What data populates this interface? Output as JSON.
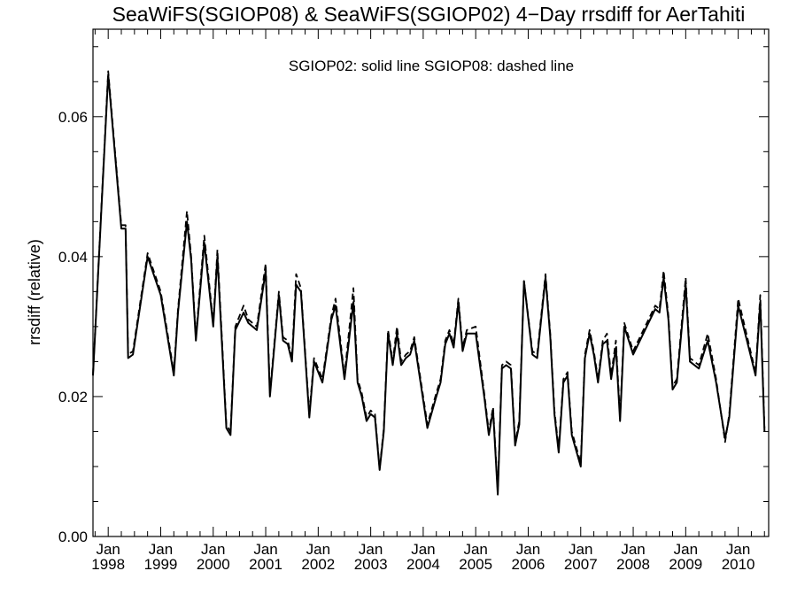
{
  "chart_data": {
    "type": "line",
    "title": "SeaWiFS(SGIOP08) & SeaWiFS(SGIOP02) 4−Day rrsdiff for AerTahiti",
    "annotation": "SGIOP02: solid line   SGIOP08: dashed line",
    "ylabel": "rrsdiff (relative)",
    "xlabel": "",
    "xlim": [
      1997.71,
      2010.58
    ],
    "ylim": [
      0.0,
      0.0725
    ],
    "yticks": [
      0.0,
      0.02,
      0.04,
      0.06
    ],
    "ytick_labels": [
      "0.00",
      "0.02",
      "0.04",
      "0.06"
    ],
    "x_tick_labels": [
      {
        "x": 1998.0,
        "month": "Jan",
        "year": "1998"
      },
      {
        "x": 1999.0,
        "month": "Jan",
        "year": "1999"
      },
      {
        "x": 2000.0,
        "month": "Jan",
        "year": "2000"
      },
      {
        "x": 2001.0,
        "month": "Jan",
        "year": "2001"
      },
      {
        "x": 2002.0,
        "month": "Jan",
        "year": "2002"
      },
      {
        "x": 2003.0,
        "month": "Jan",
        "year": "2003"
      },
      {
        "x": 2004.0,
        "month": "Jan",
        "year": "2004"
      },
      {
        "x": 2005.0,
        "month": "Jan",
        "year": "2005"
      },
      {
        "x": 2006.0,
        "month": "Jan",
        "year": "2006"
      },
      {
        "x": 2007.0,
        "month": "Jan",
        "year": "2007"
      },
      {
        "x": 2008.0,
        "month": "Jan",
        "year": "2008"
      },
      {
        "x": 2009.0,
        "month": "Jan",
        "year": "2009"
      },
      {
        "x": 2010.0,
        "month": "Jan",
        "year": "2010"
      }
    ],
    "grid": false,
    "series": [
      {
        "style": "solid",
        "x": [
          1997.71,
          1998.0,
          1998.25,
          1998.33,
          1998.38,
          1998.47,
          1998.75,
          1999.0,
          1999.25,
          1999.33,
          1999.5,
          1999.58,
          1999.67,
          1999.83,
          2000.0,
          2000.08,
          2000.25,
          2000.33,
          2000.42,
          2000.58,
          2000.67,
          2000.83,
          2001.0,
          2001.08,
          2001.25,
          2001.33,
          2001.42,
          2001.5,
          2001.58,
          2001.67,
          2001.83,
          2001.92,
          2002.08,
          2002.25,
          2002.33,
          2002.5,
          2002.67,
          2002.75,
          2002.83,
          2002.92,
          2003.0,
          2003.08,
          2003.17,
          2003.25,
          2003.33,
          2003.42,
          2003.5,
          2003.58,
          2003.67,
          2003.75,
          2003.83,
          2004.08,
          2004.25,
          2004.33,
          2004.42,
          2004.5,
          2004.58,
          2004.67,
          2004.75,
          2004.83,
          2005.0,
          2005.17,
          2005.25,
          2005.33,
          2005.42,
          2005.5,
          2005.58,
          2005.67,
          2005.75,
          2005.83,
          2005.92,
          2006.08,
          2006.17,
          2006.33,
          2006.42,
          2006.5,
          2006.58,
          2006.67,
          2006.75,
          2006.83,
          2007.0,
          2007.08,
          2007.17,
          2007.25,
          2007.33,
          2007.42,
          2007.5,
          2007.58,
          2007.67,
          2007.75,
          2007.83,
          2008.0,
          2008.42,
          2008.5,
          2008.58,
          2008.67,
          2008.75,
          2008.83,
          2009.0,
          2009.08,
          2009.25,
          2009.42,
          2009.58,
          2009.75,
          2009.83,
          2010.0,
          2010.25,
          2010.33,
          2010.42,
          2010.5
        ],
        "values": [
          0.023,
          0.066,
          0.044,
          0.044,
          0.0255,
          0.026,
          0.04,
          0.0345,
          0.023,
          0.032,
          0.045,
          0.0395,
          0.028,
          0.042,
          0.03,
          0.04,
          0.0155,
          0.0145,
          0.0295,
          0.032,
          0.0305,
          0.0295,
          0.038,
          0.02,
          0.0345,
          0.028,
          0.0275,
          0.025,
          0.036,
          0.035,
          0.017,
          0.025,
          0.022,
          0.031,
          0.033,
          0.0225,
          0.0335,
          0.022,
          0.02,
          0.0165,
          0.0175,
          0.017,
          0.0095,
          0.015,
          0.029,
          0.0245,
          0.029,
          0.0245,
          0.0255,
          0.026,
          0.028,
          0.0155,
          0.02,
          0.022,
          0.0275,
          0.029,
          0.027,
          0.0335,
          0.0265,
          0.029,
          0.029,
          0.0195,
          0.0145,
          0.018,
          0.006,
          0.024,
          0.0245,
          0.024,
          0.013,
          0.016,
          0.0365,
          0.026,
          0.0255,
          0.037,
          0.0285,
          0.0175,
          0.012,
          0.022,
          0.023,
          0.0145,
          0.01,
          0.0255,
          0.029,
          0.026,
          0.022,
          0.0275,
          0.028,
          0.0225,
          0.027,
          0.0165,
          0.03,
          0.026,
          0.0325,
          0.032,
          0.037,
          0.031,
          0.021,
          0.022,
          0.036,
          0.025,
          0.024,
          0.028,
          0.022,
          0.014,
          0.017,
          0.033,
          0.0255,
          0.023,
          0.0335,
          0.015
        ]
      },
      {
        "style": "dashed",
        "x": [
          1997.71,
          1998.0,
          1998.25,
          1998.33,
          1998.38,
          1998.47,
          1998.75,
          1999.0,
          1999.25,
          1999.33,
          1999.5,
          1999.58,
          1999.67,
          1999.83,
          2000.0,
          2000.08,
          2000.25,
          2000.33,
          2000.42,
          2000.58,
          2000.67,
          2000.83,
          2001.0,
          2001.08,
          2001.25,
          2001.33,
          2001.42,
          2001.5,
          2001.58,
          2001.67,
          2001.83,
          2001.92,
          2002.08,
          2002.25,
          2002.33,
          2002.5,
          2002.67,
          2002.75,
          2002.83,
          2002.92,
          2003.0,
          2003.08,
          2003.17,
          2003.25,
          2003.33,
          2003.42,
          2003.5,
          2003.58,
          2003.67,
          2003.75,
          2003.83,
          2004.08,
          2004.25,
          2004.33,
          2004.42,
          2004.5,
          2004.58,
          2004.67,
          2004.75,
          2004.83,
          2005.0,
          2005.17,
          2005.25,
          2005.33,
          2005.42,
          2005.5,
          2005.58,
          2005.67,
          2005.75,
          2005.83,
          2005.92,
          2006.08,
          2006.17,
          2006.33,
          2006.42,
          2006.5,
          2006.58,
          2006.67,
          2006.75,
          2006.83,
          2007.0,
          2007.08,
          2007.17,
          2007.25,
          2007.33,
          2007.42,
          2007.5,
          2007.58,
          2007.67,
          2007.75,
          2007.83,
          2008.0,
          2008.42,
          2008.5,
          2008.58,
          2008.67,
          2008.75,
          2008.83,
          2009.0,
          2009.08,
          2009.25,
          2009.42,
          2009.58,
          2009.75,
          2009.83,
          2010.0,
          2010.25,
          2010.33,
          2010.42,
          2010.5
        ],
        "values": [
          0.0232,
          0.0665,
          0.0445,
          0.0445,
          0.026,
          0.0265,
          0.0405,
          0.035,
          0.0235,
          0.0325,
          0.0465,
          0.04,
          0.0285,
          0.043,
          0.0305,
          0.041,
          0.016,
          0.015,
          0.03,
          0.033,
          0.031,
          0.03,
          0.039,
          0.0205,
          0.035,
          0.0285,
          0.028,
          0.0255,
          0.0375,
          0.0355,
          0.0175,
          0.0255,
          0.0225,
          0.0315,
          0.034,
          0.023,
          0.0355,
          0.0225,
          0.0205,
          0.017,
          0.018,
          0.0175,
          0.0097,
          0.0155,
          0.0295,
          0.025,
          0.03,
          0.025,
          0.026,
          0.0265,
          0.0285,
          0.016,
          0.0205,
          0.0225,
          0.028,
          0.0295,
          0.0275,
          0.034,
          0.027,
          0.0295,
          0.03,
          0.02,
          0.015,
          0.0185,
          0.0065,
          0.0245,
          0.025,
          0.0245,
          0.0135,
          0.0165,
          0.0365,
          0.0265,
          0.026,
          0.0375,
          0.029,
          0.018,
          0.0125,
          0.0225,
          0.0235,
          0.015,
          0.0105,
          0.026,
          0.0295,
          0.0265,
          0.0225,
          0.028,
          0.029,
          0.023,
          0.028,
          0.017,
          0.0305,
          0.0265,
          0.033,
          0.0325,
          0.038,
          0.0315,
          0.0215,
          0.0225,
          0.037,
          0.0255,
          0.0245,
          0.029,
          0.0225,
          0.0135,
          0.0175,
          0.034,
          0.026,
          0.0235,
          0.0345,
          0.0155
        ]
      }
    ]
  }
}
